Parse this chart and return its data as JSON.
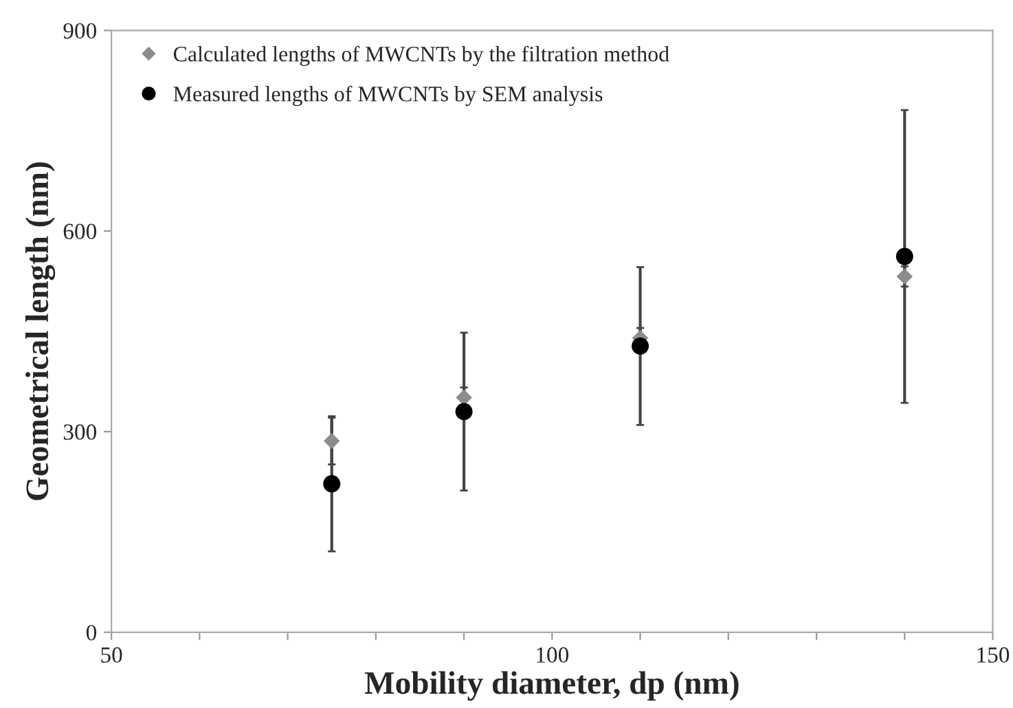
{
  "chart_data": {
    "type": "scatter",
    "xlabel": "Mobility diameter, dp (nm)",
    "ylabel": "Geometrical length (nm)",
    "xlim": [
      50,
      150
    ],
    "xticks": [
      50,
      {
        "value": 60,
        "label": null
      },
      {
        "value": 70,
        "label": null
      },
      {
        "value": 80,
        "label": null
      },
      {
        "value": 90,
        "label": null
      },
      100,
      {
        "value": 110,
        "label": null
      },
      {
        "value": 120,
        "label": null
      },
      {
        "value": 130,
        "label": null
      },
      {
        "value": 140,
        "label": null
      },
      150
    ],
    "ylim": [
      0,
      900
    ],
    "yticks": [
      0,
      300,
      600,
      900
    ],
    "grid": false,
    "legend": "top left",
    "series": [
      {
        "name": "Calculated lengths of MWCNTs by the filtration method",
        "color": "#8c8c8c",
        "marker": "diamond",
        "x": [
          75,
          90,
          110,
          140
        ],
        "values": [
          286,
          351,
          440,
          532
        ],
        "errors": [
          35,
          15,
          15,
          15
        ]
      },
      {
        "name": "Measured lengths of MWCNTs by SEM analysis",
        "color": "#000000",
        "marker": "circle",
        "x": [
          75,
          90,
          110,
          140
        ],
        "values": [
          222,
          330,
          428,
          562
        ],
        "errors": [
          101,
          118,
          118,
          219
        ]
      }
    ]
  }
}
